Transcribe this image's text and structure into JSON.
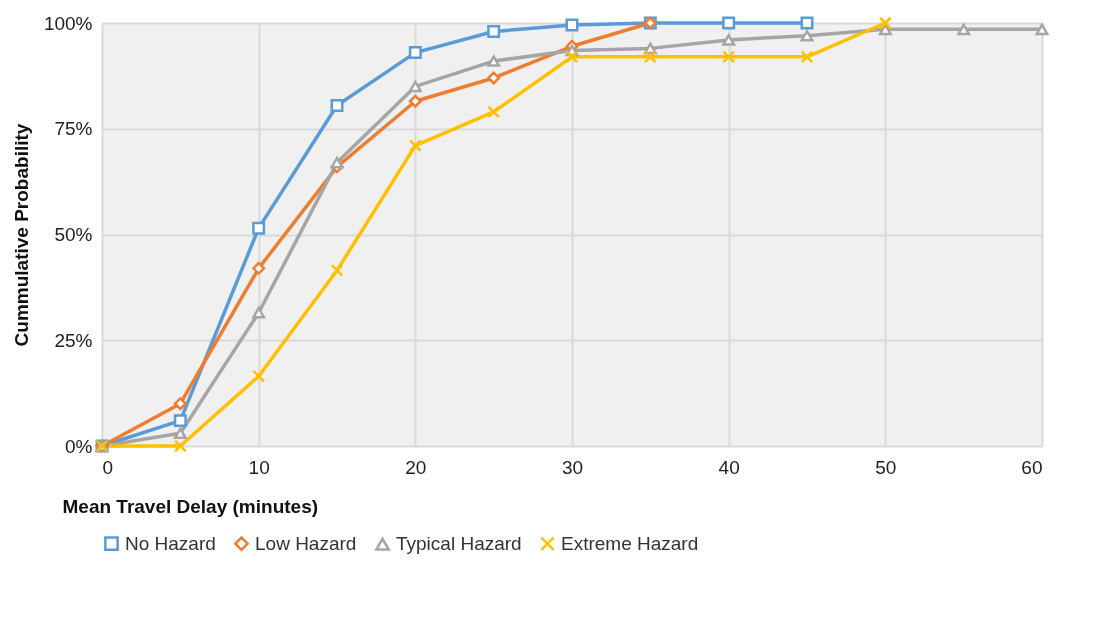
{
  "chart_data": {
    "type": "line",
    "xlabel": "Mean Travel Delay (minutes)",
    "ylabel": "Cummulative Probability",
    "xlim": [
      0,
      60
    ],
    "xticks": [
      0,
      10,
      20,
      30,
      40,
      50,
      60
    ],
    "ylim": [
      0,
      100
    ],
    "yticks": [
      {
        "value": 0,
        "label": "0%"
      },
      {
        "value": 25,
        "label": "25%"
      },
      {
        "value": 50,
        "label": "50%"
      },
      {
        "value": 75,
        "label": "75%"
      },
      {
        "value": 100,
        "label": "100%"
      }
    ],
    "grid": true,
    "legend": "bottom",
    "line_style": "solid",
    "series": [
      {
        "name": "No Hazard",
        "color": "#5b9bd5",
        "marker": "square",
        "x": [
          0,
          5,
          10,
          15,
          20,
          25,
          30,
          35,
          40,
          45
        ],
        "values": [
          0,
          6,
          51.5,
          80.5,
          93,
          98,
          99.5,
          100,
          100,
          100
        ]
      },
      {
        "name": "Low Hazard",
        "color": "#ed7d31",
        "marker": "diamond",
        "x": [
          0,
          5,
          10,
          15,
          20,
          25,
          30,
          35
        ],
        "values": [
          0,
          10,
          42,
          66,
          81.5,
          87,
          94.5,
          100
        ]
      },
      {
        "name": "Typical Hazard",
        "color": "#a5a5a5",
        "marker": "triangle",
        "x": [
          0,
          5,
          10,
          15,
          20,
          25,
          30,
          35,
          40,
          45,
          50,
          55,
          60
        ],
        "values": [
          0,
          3,
          31.5,
          67,
          85,
          91,
          93.5,
          94,
          96,
          97,
          98.5,
          98.5,
          98.5
        ]
      },
      {
        "name": "Extreme Hazard",
        "color": "#ffc000",
        "marker": "cross",
        "x": [
          0,
          5,
          10,
          15,
          20,
          25,
          30,
          35,
          40,
          45,
          50
        ],
        "values": [
          0,
          0,
          16.5,
          41.5,
          71,
          79,
          92,
          92,
          92,
          92,
          100
        ]
      }
    ]
  }
}
